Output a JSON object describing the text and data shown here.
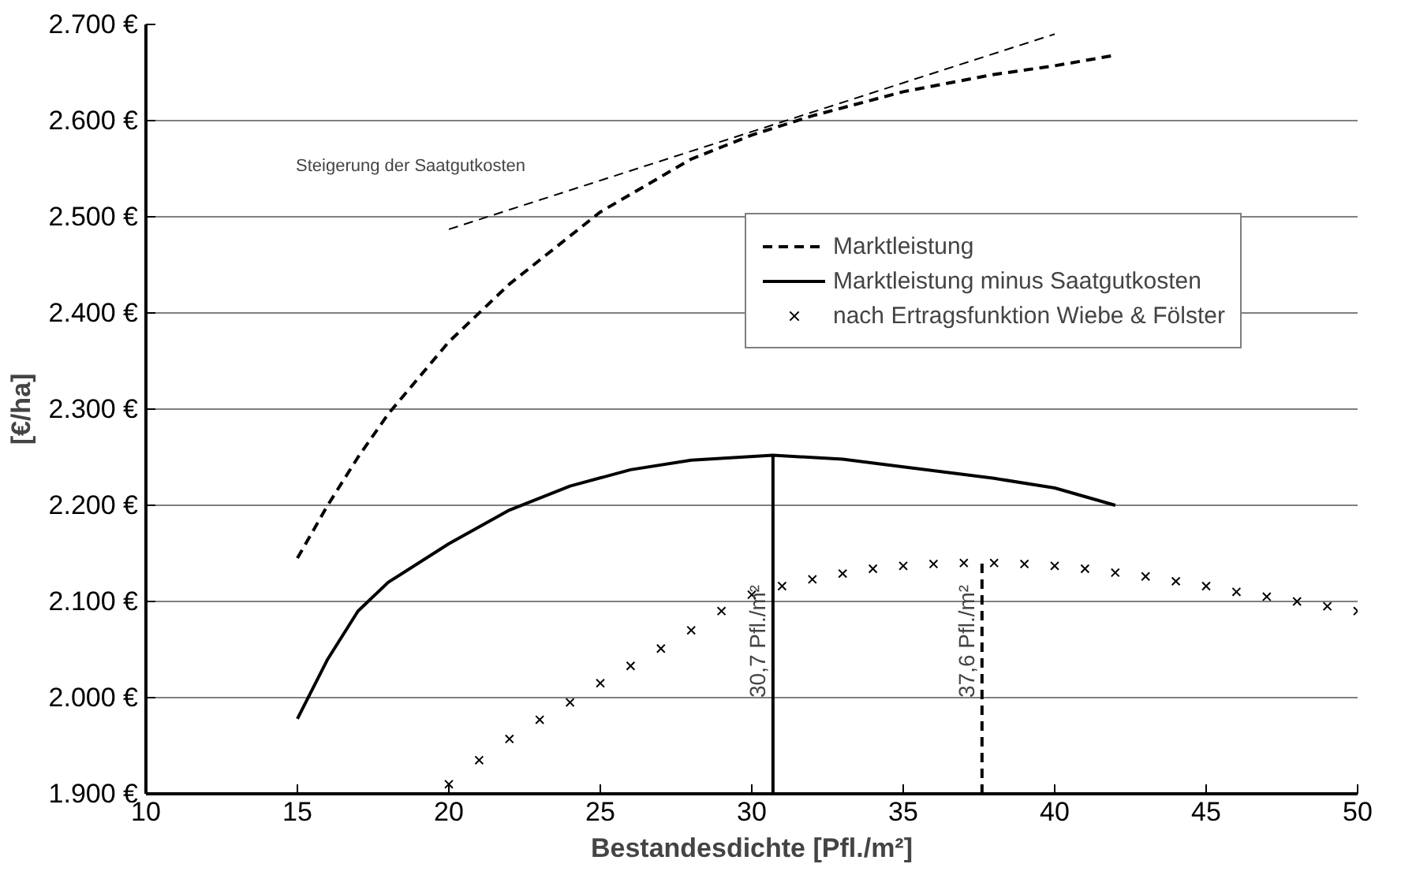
{
  "chart_data": {
    "type": "line",
    "xlabel": "Bestandesdichte [Pfl./m²]",
    "ylabel": "[€/ha]",
    "xlim": [
      10,
      50
    ],
    "xticks": [
      10,
      15,
      20,
      25,
      30,
      35,
      40,
      45,
      50
    ],
    "ylim": [
      1900,
      2700
    ],
    "yticks": [
      {
        "value": 1900,
        "label": "1.900 €"
      },
      {
        "value": 2000,
        "label": "2.000 €"
      },
      {
        "value": 2100,
        "label": "2.100 €"
      },
      {
        "value": 2200,
        "label": "2.200 €"
      },
      {
        "value": 2300,
        "label": "2.300 €"
      },
      {
        "value": 2400,
        "label": "2.400 €"
      },
      {
        "value": 2500,
        "label": "2.500 €"
      },
      {
        "value": 2600,
        "label": "2.600 €"
      },
      {
        "value": 2700,
        "label": "2.700 €"
      }
    ],
    "grid": "y",
    "legend": "top right",
    "series": [
      {
        "name": "Marktleistung",
        "color": "#000000",
        "line_style": "dashed",
        "marker": "none",
        "x": [
          15,
          16,
          17,
          18,
          20,
          22,
          25,
          28,
          30,
          32,
          35,
          38,
          40,
          42
        ],
        "values": [
          2145,
          2200,
          2250,
          2295,
          2370,
          2430,
          2505,
          2560,
          2585,
          2605,
          2630,
          2648,
          2657,
          2668
        ]
      },
      {
        "name": "Marktleistung minus Saatgutkosten",
        "color": "#000000",
        "line_style": "solid",
        "marker": "none",
        "x": [
          15,
          16,
          17,
          18,
          20,
          22,
          24,
          26,
          28,
          30.7,
          33,
          35,
          38,
          40,
          42
        ],
        "values": [
          1978,
          2040,
          2090,
          2120,
          2160,
          2195,
          2220,
          2237,
          2247,
          2252,
          2248,
          2240,
          2228,
          2218,
          2200
        ]
      },
      {
        "name": "nach Ertragsfunktion Wiebe & Fölster",
        "type": "scatter",
        "color": "#000000",
        "marker": "cross",
        "x": [
          20,
          21,
          22,
          23,
          24,
          25,
          26,
          27,
          28,
          29,
          30,
          31,
          32,
          33,
          34,
          35,
          36,
          37,
          38,
          39,
          40,
          41,
          42,
          43,
          44,
          45,
          46,
          47,
          48,
          49,
          50
        ],
        "values": [
          1910,
          1935,
          1957,
          1977,
          1995,
          2015,
          2033,
          2051,
          2070,
          2090,
          2107,
          2116,
          2123,
          2129,
          2134,
          2137,
          2139,
          2140,
          2140,
          2139,
          2137,
          2134,
          2130,
          2126,
          2121,
          2116,
          2110,
          2105,
          2100,
          2095,
          2090
        ]
      },
      {
        "color": "#000000",
        "line_style": "dashed",
        "marker": "none",
        "x": [
          20,
          40
        ],
        "values": [
          2487,
          2690
        ]
      },
      {
        "color": "#000000",
        "line_style": "solid",
        "marker": "none",
        "x": [
          30.7,
          30.7
        ],
        "values": [
          1900,
          2252
        ]
      },
      {
        "color": "#000000",
        "line_style": "dashed",
        "marker": "none",
        "x": [
          37.6,
          37.6
        ],
        "values": [
          1900,
          2140
        ]
      }
    ],
    "annotations": [
      "Steigerung der Saatgutkosten",
      {
        "text": "30,7 Pfl./m²",
        "x": 30.7,
        "y": 2000
      },
      {
        "text": "37,6 Pfl./m²",
        "x": 37.6,
        "y": 2000
      }
    ]
  }
}
